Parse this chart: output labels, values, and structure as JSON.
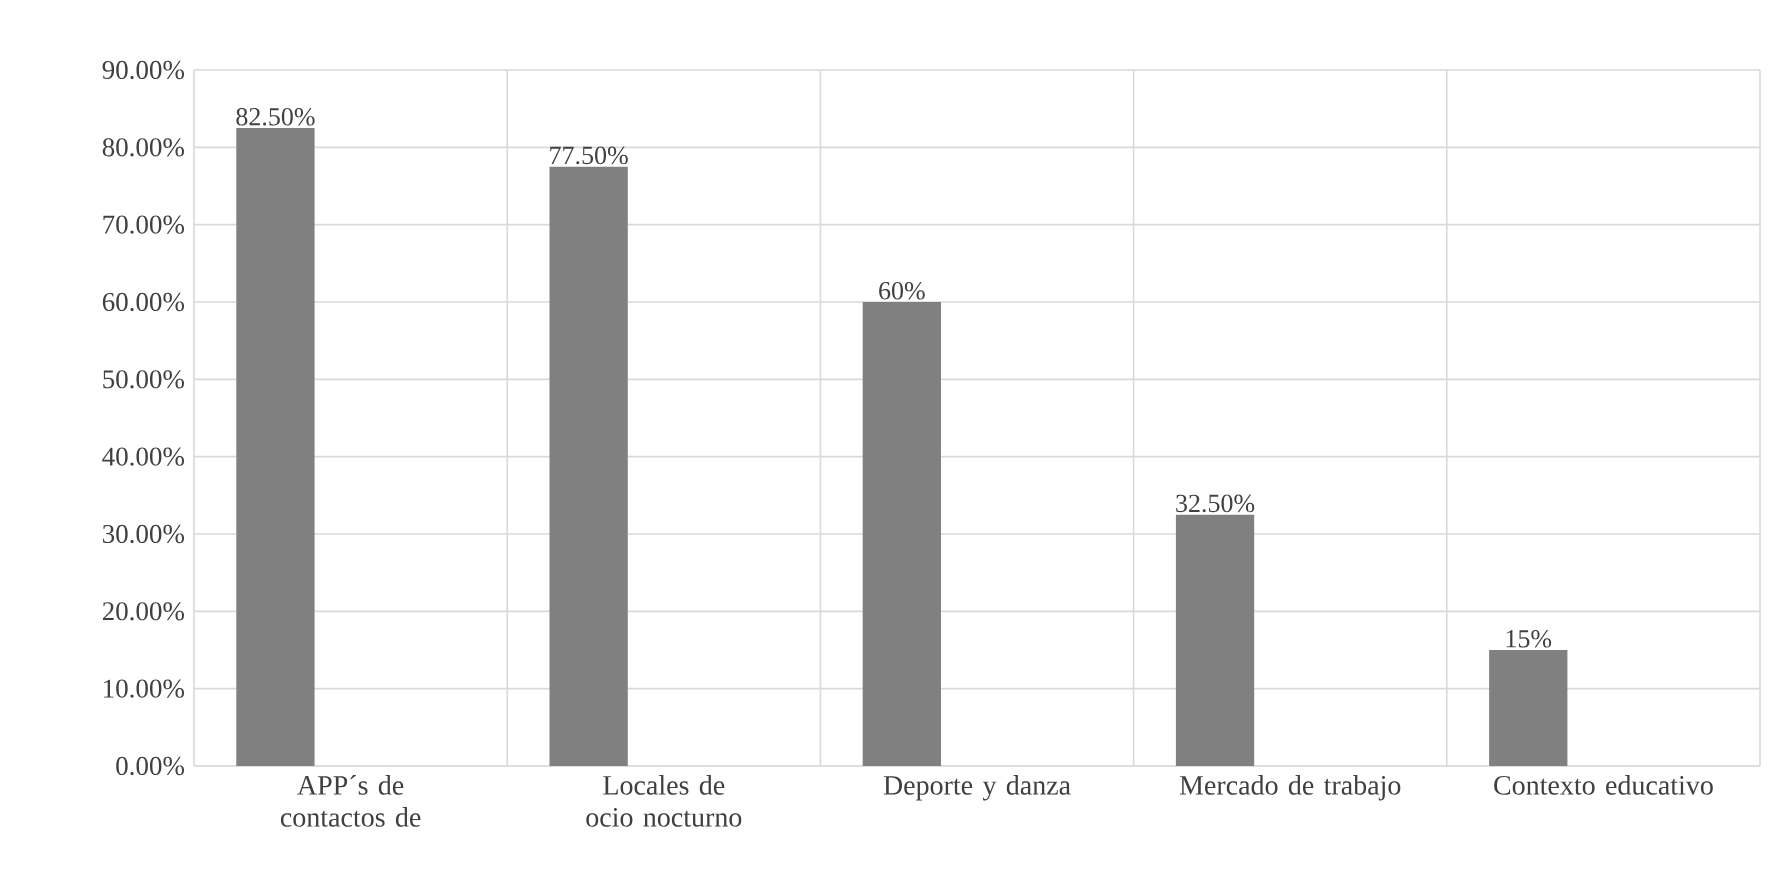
{
  "chart_data": {
    "type": "bar",
    "categories": [
      "APP´s de contactos de",
      "Locales de ocio nocturno",
      "Deporte y danza",
      "Mercado de trabajo",
      "Contexto educativo"
    ],
    "values": [
      82.5,
      77.5,
      60,
      32.5,
      15
    ],
    "value_labels": [
      "82.50%",
      "77.50%",
      "60%",
      "32.50%",
      "15%"
    ],
    "color": "#808080",
    "ylim": [
      0,
      90
    ],
    "yticks": [
      {
        "value": 0,
        "label": "0.00%"
      },
      {
        "value": 10,
        "label": "10.00%"
      },
      {
        "value": 20,
        "label": "20.00%"
      },
      {
        "value": 30,
        "label": "30.00%"
      },
      {
        "value": 40,
        "label": "40.00%"
      },
      {
        "value": 50,
        "label": "50.00%"
      },
      {
        "value": 60,
        "label": "60.00%"
      },
      {
        "value": 70,
        "label": "70.00%"
      },
      {
        "value": 80,
        "label": "80.00%"
      },
      {
        "value": 90,
        "label": "90.00%"
      }
    ],
    "grid": true
  }
}
